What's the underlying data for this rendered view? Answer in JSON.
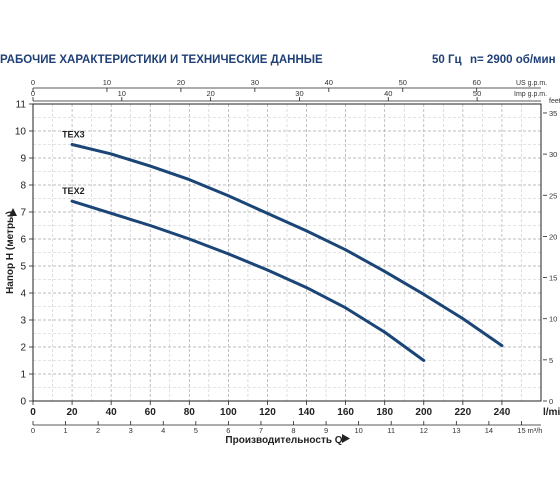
{
  "header": {
    "title": "РАБОЧИЕ ХАРАКТЕРИСТИКИ И ТЕХНИЧЕСКИЕ ДАННЫЕ",
    "frequency": "50 Гц",
    "speed": "n= 2900 об/мин"
  },
  "chart_data": {
    "type": "line",
    "title": "",
    "xlabel": "Производительность Q",
    "ylabel": "Напор H (метры)",
    "grid": true,
    "x_units": "l/min",
    "y_units": "m",
    "xlim": [
      0,
      260
    ],
    "ylim": [
      0,
      11
    ],
    "x_ticks": [
      0,
      20,
      40,
      60,
      80,
      100,
      120,
      140,
      160,
      180,
      200,
      220,
      240
    ],
    "y_ticks": [
      0,
      1,
      2,
      3,
      4,
      5,
      6,
      7,
      8,
      9,
      10,
      11
    ],
    "x_unit_label": "l/min",
    "secondary_axes": {
      "top_us": {
        "label": "US g.p.m.",
        "ticks": [
          0,
          10,
          20,
          30,
          40,
          50,
          60
        ]
      },
      "top_imp": {
        "label": "Imp g.p.m.",
        "ticks": [
          0,
          10,
          20,
          30,
          40,
          50
        ]
      },
      "bottom_m3h": {
        "label": "m³/h",
        "ticks": [
          0,
          1,
          2,
          3,
          4,
          5,
          6,
          7,
          8,
          9,
          10,
          11,
          12,
          13,
          14,
          15
        ]
      },
      "right_feet": {
        "label": "feet",
        "ticks": [
          0,
          5,
          10,
          15,
          20,
          25,
          30,
          35
        ]
      }
    },
    "series": [
      {
        "name": "TEX3",
        "color": "#1b4577",
        "x": [
          20,
          40,
          60,
          80,
          100,
          120,
          140,
          160,
          180,
          200,
          220,
          240
        ],
        "y": [
          9.5,
          9.15,
          8.7,
          8.2,
          7.6,
          6.95,
          6.3,
          5.6,
          4.8,
          3.95,
          3.05,
          2.05
        ]
      },
      {
        "name": "TEX2",
        "color": "#1b4577",
        "x": [
          20,
          40,
          60,
          80,
          100,
          120,
          140,
          160,
          180,
          200
        ],
        "y": [
          7.4,
          6.95,
          6.5,
          6.0,
          5.45,
          4.85,
          4.2,
          3.45,
          2.55,
          1.5
        ]
      }
    ]
  }
}
